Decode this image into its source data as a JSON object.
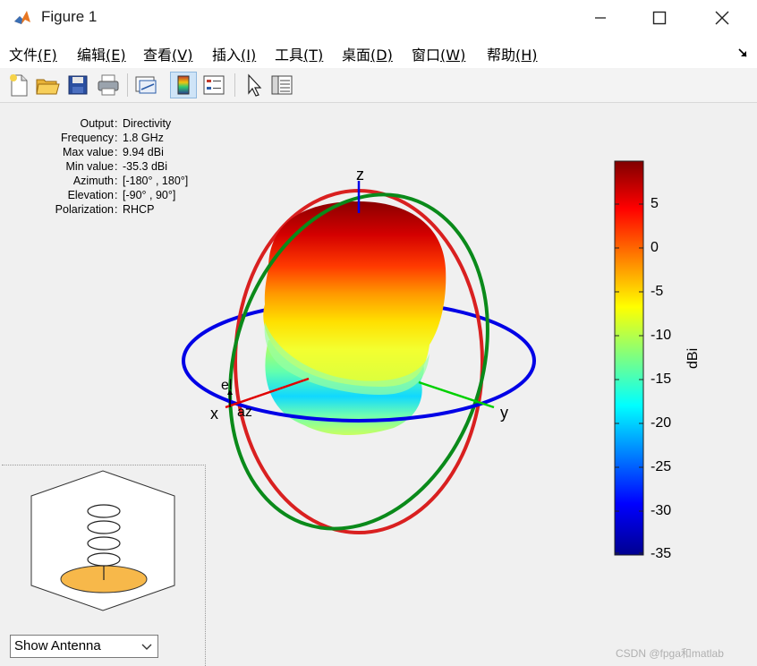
{
  "window": {
    "title": "Figure 1"
  },
  "menu": {
    "items": [
      {
        "label": "文件",
        "key": "(F)"
      },
      {
        "label": "编辑",
        "key": "(E)"
      },
      {
        "label": "查看",
        "key": "(V)"
      },
      {
        "label": "插入",
        "key": "(I)"
      },
      {
        "label": "工具",
        "key": "(T)"
      },
      {
        "label": "桌面",
        "key": "(D)"
      },
      {
        "label": "窗口",
        "key": "(W)"
      },
      {
        "label": "帮助",
        "key": "(H)"
      }
    ]
  },
  "toolbar": {
    "icons": [
      "new-figure-icon",
      "open-file-icon",
      "save-icon",
      "print-icon",
      "link-plot-icon",
      "colorbar-icon",
      "legend-icon",
      "pointer-icon",
      "property-inspector-icon"
    ]
  },
  "info": {
    "labels": [
      "Output",
      "Frequency",
      "Max value",
      "Min value",
      "Azimuth",
      "Elevation",
      "Polarization"
    ],
    "values": [
      "Directivity",
      "1.8 GHz",
      "9.94 dBi",
      "-35.3 dBi",
      "[-180° , 180°]",
      "[-90° , 90°]",
      "RHCP"
    ]
  },
  "axes": {
    "z": "z",
    "x": "x",
    "y": "y",
    "el": "el",
    "az": "az"
  },
  "colorbar": {
    "label": "dBi",
    "ticks": [
      "5",
      "0",
      "-5",
      "-10",
      "-15",
      "-20",
      "-25",
      "-30",
      "-35"
    ],
    "min": -35.3,
    "max": 9.94
  },
  "antenna_view": {
    "selected": "Show Antenna"
  },
  "watermark": "CSDN @fpga和matlab",
  "colors": {
    "azimuth_ring": "#0000e6",
    "elevation_ring_red": "#d92020",
    "elevation_ring_green": "#0a8a1a"
  }
}
